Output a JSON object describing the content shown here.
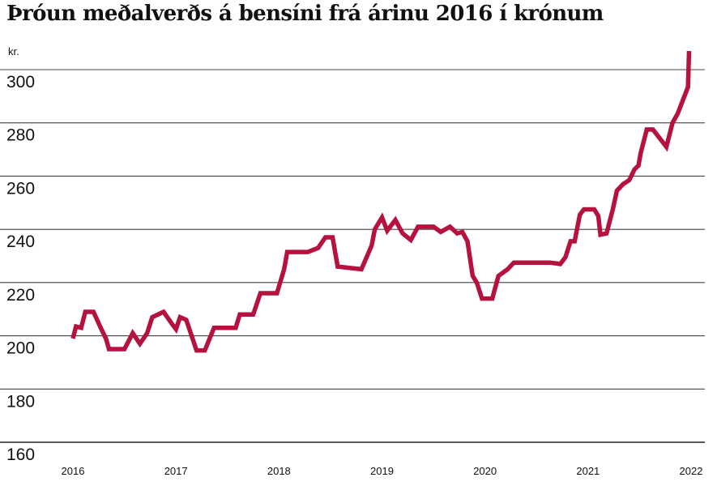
{
  "chart_data": {
    "type": "line",
    "title": "Þróun meðalverðs á bensíni frá árinu 2016 í krónum",
    "ylabel": "kr.",
    "xlabel": "",
    "ylim": [
      160,
      310
    ],
    "xlim": [
      2016,
      2022
    ],
    "yticks": [
      160,
      180,
      200,
      220,
      240,
      260,
      280,
      300
    ],
    "xticks": [
      "2016",
      "2017",
      "2018",
      "2019",
      "2020",
      "2021",
      "2022"
    ],
    "grid": "horizontal",
    "line_color": "#b5123f",
    "series": [
      {
        "values": [
          [
            2016.0,
            199.0
          ],
          [
            2016.03,
            203.5
          ],
          [
            2016.08,
            203.0
          ],
          [
            2016.12,
            209.0
          ],
          [
            2016.2,
            209.0
          ],
          [
            2016.27,
            203.0
          ],
          [
            2016.32,
            199.0
          ],
          [
            2016.35,
            195.0
          ],
          [
            2016.5,
            195.0
          ],
          [
            2016.58,
            201.0
          ],
          [
            2016.65,
            197.0
          ],
          [
            2016.72,
            201.0
          ],
          [
            2016.77,
            207.0
          ],
          [
            2016.88,
            209.0
          ],
          [
            2016.97,
            204.0
          ],
          [
            2017.0,
            202.5
          ],
          [
            2017.04,
            207.0
          ],
          [
            2017.1,
            206.0
          ],
          [
            2017.2,
            194.5
          ],
          [
            2017.28,
            194.5
          ],
          [
            2017.37,
            203.0
          ],
          [
            2017.52,
            203.0
          ],
          [
            2017.58,
            203.0
          ],
          [
            2017.62,
            208.0
          ],
          [
            2017.75,
            208.0
          ],
          [
            2017.82,
            216.0
          ],
          [
            2017.98,
            216.0
          ],
          [
            2018.05,
            225.0
          ],
          [
            2018.08,
            231.5
          ],
          [
            2018.28,
            231.5
          ],
          [
            2018.38,
            233.0
          ],
          [
            2018.45,
            237.0
          ],
          [
            2018.52,
            237.0
          ],
          [
            2018.57,
            226.0
          ],
          [
            2018.8,
            225.0
          ],
          [
            2018.9,
            234.0
          ],
          [
            2018.93,
            240.0
          ],
          [
            2019.0,
            244.5
          ],
          [
            2019.05,
            239.5
          ],
          [
            2019.13,
            243.5
          ],
          [
            2019.2,
            238.5
          ],
          [
            2019.28,
            236.0
          ],
          [
            2019.35,
            241.0
          ],
          [
            2019.5,
            241.0
          ],
          [
            2019.57,
            239.0
          ],
          [
            2019.66,
            241.0
          ],
          [
            2019.73,
            238.5
          ],
          [
            2019.78,
            239.0
          ],
          [
            2019.83,
            235.5
          ],
          [
            2019.88,
            222.5
          ],
          [
            2019.92,
            220.0
          ],
          [
            2019.97,
            214.0
          ],
          [
            2020.07,
            214.0
          ],
          [
            2020.13,
            222.5
          ],
          [
            2020.22,
            225.0
          ],
          [
            2020.28,
            227.5
          ],
          [
            2020.63,
            227.5
          ],
          [
            2020.73,
            227.0
          ],
          [
            2020.78,
            229.5
          ],
          [
            2020.83,
            235.5
          ],
          [
            2020.87,
            235.5
          ],
          [
            2020.92,
            245.5
          ],
          [
            2020.96,
            247.5
          ],
          [
            2021.06,
            247.5
          ],
          [
            2021.1,
            245.0
          ],
          [
            2021.12,
            238.0
          ],
          [
            2021.18,
            238.5
          ],
          [
            2021.24,
            247.5
          ],
          [
            2021.28,
            254.5
          ],
          [
            2021.34,
            257.0
          ],
          [
            2021.4,
            258.5
          ],
          [
            2021.45,
            262.5
          ],
          [
            2021.49,
            264.0
          ],
          [
            2021.51,
            268.5
          ],
          [
            2021.57,
            277.5
          ],
          [
            2021.63,
            277.5
          ],
          [
            2021.7,
            274.0
          ],
          [
            2021.76,
            271.0
          ],
          [
            2021.82,
            280.0
          ],
          [
            2021.87,
            283.5
          ],
          [
            2021.93,
            289.5
          ],
          [
            2021.97,
            293.5
          ],
          [
            2021.98,
            307.0
          ]
        ]
      }
    ]
  }
}
